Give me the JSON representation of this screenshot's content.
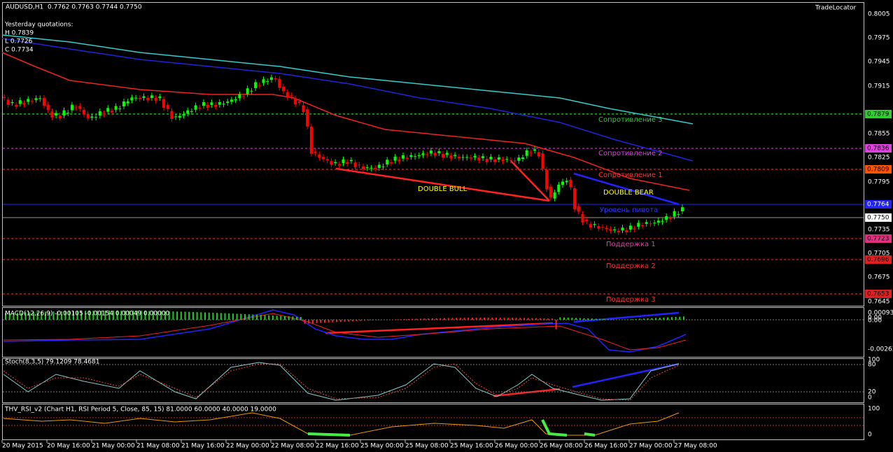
{
  "header": {
    "symbol": "AUDUSD,H1",
    "quotes": "0.7762 0.7763 0.7744 0.7750",
    "brand": "TradeLocator"
  },
  "yesterday": {
    "title": "Yesterday quotations:",
    "high": "H 0.7839",
    "low": "L 0.7726",
    "close": "C 0.7734"
  },
  "price_axis": [
    "0.8005",
    "0.7975",
    "0.7945",
    "0.7915",
    "0.7855",
    "0.7825",
    "0.7795",
    "0.7735",
    "0.7705",
    "0.7675",
    "0.7645"
  ],
  "level_boxes": [
    "0.7879",
    "0.7836",
    "0.7809",
    "0.7764",
    "0.7750",
    "0.7723",
    "0.7696",
    "0.7653"
  ],
  "levels": [
    "Сопротивление 3",
    "Сопротивление 2",
    "Сопротивление 1",
    "Уровень пивота",
    "Поддержка 1",
    "Поддержка 2",
    "Поддержка 3"
  ],
  "patterns": [
    "DOUBLE BULL",
    "DOUBLE BEAR"
  ],
  "macd": {
    "label": "MACD(12,26,9) -0.00105 -0.00154 0.00049 0.00000",
    "axis": [
      "0.00093",
      "0.00",
      "0.00",
      "-0.00263"
    ]
  },
  "stoch": {
    "label": "Stoch(8,3,5) 79.1209 78.4681",
    "axis": [
      "100",
      "80",
      "20",
      "0"
    ]
  },
  "rsi": {
    "label": "THV_RSI_v2  (Chart H1,  RSI Period 5,  Close,  85,  15)  81.0000 60.0000 40.0000 19.0000",
    "axis": [
      "100",
      "0"
    ]
  },
  "time_axis": [
    "20 May 2015",
    "20 May 16:00",
    "21 May 00:00",
    "21 May 08:00",
    "21 May 16:00",
    "22 May 00:00",
    "22 May 08:00",
    "22 May 16:00",
    "25 May 00:00",
    "25 May 08:00",
    "25 May 16:00",
    "26 May 00:00",
    "26 May 08:00",
    "26 May 16:00",
    "27 May 00:00",
    "27 May 08:00"
  ]
}
